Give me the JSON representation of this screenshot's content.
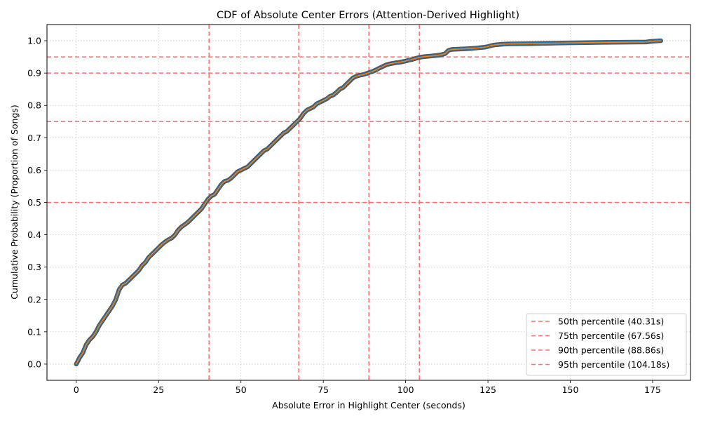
{
  "chart_data": {
    "type": "line",
    "title": "CDF of Absolute Center Errors (Attention-Derived Highlight)",
    "xlabel": "Absolute Error in Highlight Center (seconds)",
    "ylabel": "Cumulative Probability (Proportion of Songs)",
    "xlim": [
      -8.9,
      186.5
    ],
    "ylim": [
      -0.05,
      1.05
    ],
    "xticks": [
      0,
      25,
      50,
      75,
      100,
      125,
      150,
      175
    ],
    "yticks": [
      0.0,
      0.1,
      0.2,
      0.3,
      0.4,
      0.5,
      0.6,
      0.7,
      0.8,
      0.9,
      1.0
    ],
    "xtick_labels": [
      "0",
      "25",
      "50",
      "75",
      "100",
      "125",
      "150",
      "175"
    ],
    "ytick_labels": [
      "0.0",
      "0.1",
      "0.2",
      "0.3",
      "0.4",
      "0.5",
      "0.6",
      "0.7",
      "0.8",
      "0.9",
      "1.0"
    ],
    "grid": true,
    "legend_position": "lower-right",
    "colors": {
      "markers": "#1f77b4",
      "marker_edge": "#555555",
      "line": "#ff7f0e",
      "reference": "#ff6b6b"
    },
    "series": [
      {
        "x": [
          0,
          0.5,
          1,
          2,
          3,
          4,
          5,
          6,
          7,
          8,
          9,
          10,
          11,
          12,
          13,
          14,
          15,
          16,
          17,
          18,
          19,
          20,
          21,
          22,
          23,
          24,
          25,
          26,
          27,
          28,
          29,
          30,
          31,
          32,
          33,
          34,
          35,
          36,
          37,
          38,
          39,
          40,
          41,
          42,
          43,
          44,
          45,
          46,
          47,
          48,
          49,
          50,
          51,
          52,
          53,
          54,
          55,
          56,
          57,
          58,
          59,
          60,
          61,
          62,
          63,
          64,
          65,
          66,
          67,
          68,
          69,
          70,
          71,
          72,
          73,
          74,
          75,
          76,
          77,
          78,
          79,
          80,
          81,
          82,
          83,
          84,
          85,
          86,
          87,
          88,
          89,
          90,
          91,
          92,
          93,
          94,
          95,
          96,
          97,
          98,
          99,
          100,
          101,
          102,
          103,
          104,
          105,
          106,
          107,
          108,
          109,
          110,
          111,
          112,
          113,
          114,
          116,
          118,
          120,
          122,
          123,
          124,
          125,
          126,
          127,
          128,
          129,
          131,
          138,
          147.5,
          160.5,
          173,
          174.5,
          177.5
        ],
        "values": [
          0.0,
          0.01,
          0.02,
          0.035,
          0.06,
          0.075,
          0.085,
          0.1,
          0.12,
          0.135,
          0.15,
          0.165,
          0.18,
          0.2,
          0.23,
          0.245,
          0.25,
          0.26,
          0.27,
          0.28,
          0.29,
          0.305,
          0.315,
          0.33,
          0.34,
          0.35,
          0.36,
          0.37,
          0.378,
          0.385,
          0.39,
          0.4,
          0.415,
          0.425,
          0.432,
          0.44,
          0.45,
          0.46,
          0.47,
          0.48,
          0.495,
          0.51,
          0.52,
          0.525,
          0.54,
          0.555,
          0.565,
          0.568,
          0.575,
          0.585,
          0.595,
          0.6,
          0.605,
          0.61,
          0.62,
          0.63,
          0.64,
          0.65,
          0.66,
          0.665,
          0.675,
          0.685,
          0.695,
          0.705,
          0.715,
          0.72,
          0.73,
          0.74,
          0.75,
          0.76,
          0.775,
          0.785,
          0.79,
          0.795,
          0.805,
          0.81,
          0.815,
          0.82,
          0.828,
          0.832,
          0.84,
          0.85,
          0.855,
          0.865,
          0.875,
          0.885,
          0.89,
          0.893,
          0.895,
          0.898,
          0.902,
          0.905,
          0.91,
          0.915,
          0.92,
          0.925,
          0.928,
          0.93,
          0.932,
          0.933,
          0.935,
          0.937,
          0.94,
          0.942,
          0.945,
          0.948,
          0.95,
          0.951,
          0.952,
          0.953,
          0.954,
          0.955,
          0.957,
          0.96,
          0.97,
          0.973,
          0.974,
          0.975,
          0.976,
          0.978,
          0.979,
          0.98,
          0.982,
          0.985,
          0.987,
          0.988,
          0.989,
          0.99,
          0.991,
          0.993,
          0.995,
          0.996,
          0.998,
          1.0
        ]
      }
    ],
    "reference_lines": [
      {
        "label": "50th percentile (40.31s)",
        "x": 40.31,
        "y": 0.5
      },
      {
        "label": "75th percentile (67.56s)",
        "x": 67.56,
        "y": 0.75
      },
      {
        "label": "90th percentile (88.86s)",
        "x": 88.86,
        "y": 0.9
      },
      {
        "label": "95th percentile (104.18s)",
        "x": 104.18,
        "y": 0.95
      }
    ]
  }
}
